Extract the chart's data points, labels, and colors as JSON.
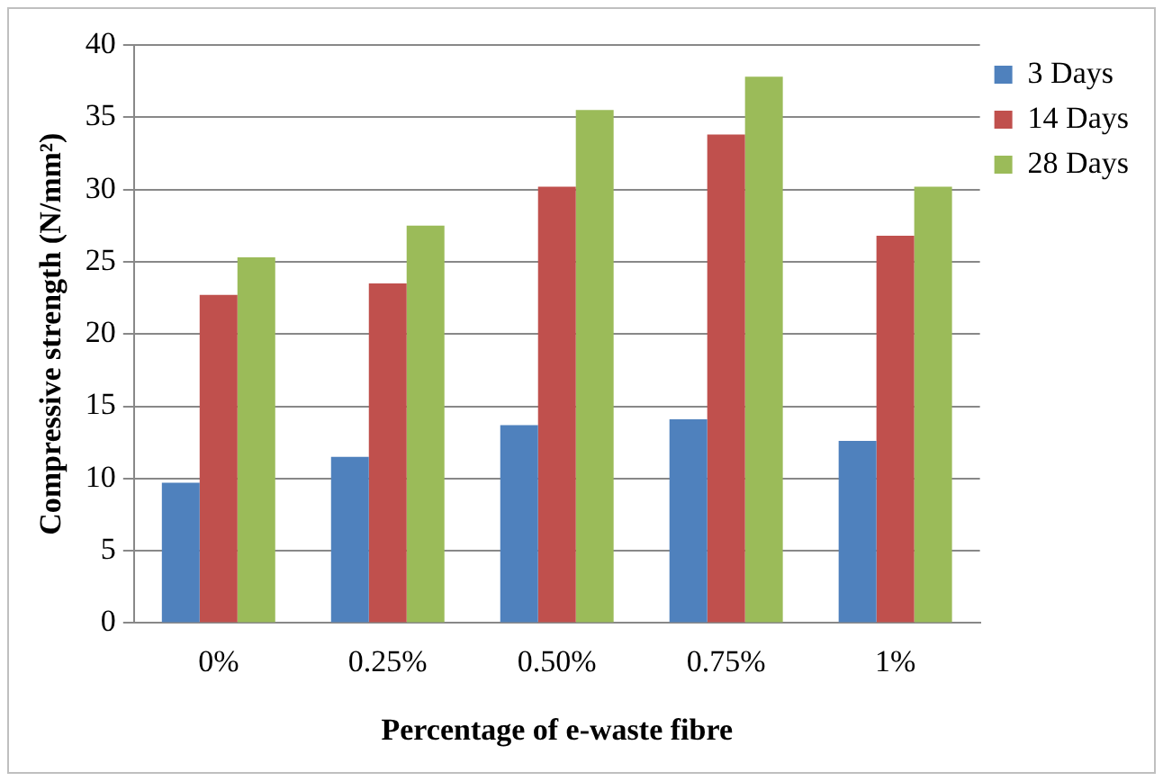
{
  "chart_data": {
    "type": "bar",
    "xlabel": "Percentage of e-waste fibre",
    "ylabel": "Compressive strength (N/mm²)",
    "categories": [
      "0%",
      "0.25%",
      "0.50%",
      "0.75%",
      "1%"
    ],
    "series": [
      {
        "name": "3 Days",
        "color": "#4f81bd",
        "values": [
          9.7,
          11.5,
          13.7,
          14.1,
          12.6
        ]
      },
      {
        "name": "14 Days",
        "color": "#c0504d",
        "values": [
          22.7,
          23.5,
          30.2,
          33.8,
          26.8
        ]
      },
      {
        "name": "28 Days",
        "color": "#9bbb59",
        "values": [
          25.3,
          27.5,
          35.5,
          37.8,
          30.2
        ]
      }
    ],
    "ylim": [
      0,
      40
    ],
    "yticks": [
      0,
      5,
      10,
      15,
      20,
      25,
      30,
      35,
      40
    ],
    "grid": "y",
    "legend": "top right"
  }
}
